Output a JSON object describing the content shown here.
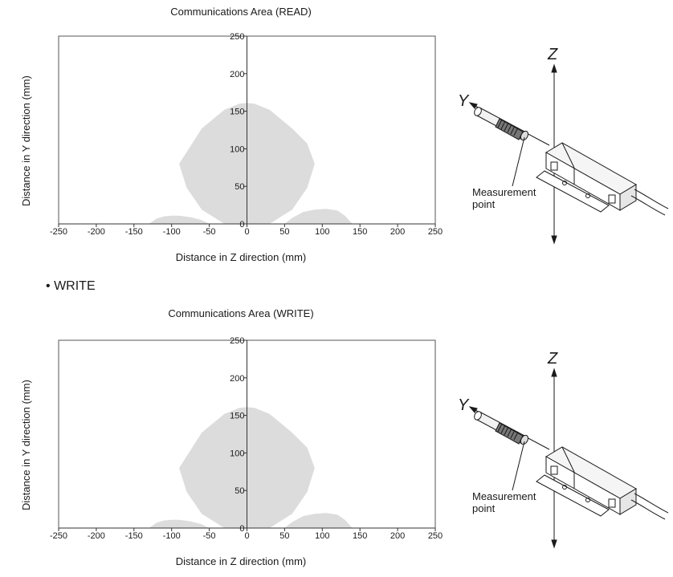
{
  "section_header": {
    "bullet": "•",
    "text": "WRITE"
  },
  "charts": [
    {
      "title": "Communications Area (READ)",
      "xlabel": "Distance in Z direction (mm)",
      "ylabel": "Distance in Y direction (mm)"
    },
    {
      "title": "Communications Area (WRITE)",
      "xlabel": "Distance in Z direction (mm)",
      "ylabel": "Distance in Y direction (mm)"
    }
  ],
  "diagram": {
    "axis_y": "Y",
    "axis_z": "Z",
    "measurement_label_1": "Measurement",
    "measurement_label_2": "point"
  },
  "chart_data": [
    {
      "type": "area",
      "title": "Communications Area (READ)",
      "xlabel": "Distance in Z direction (mm)",
      "ylabel": "Distance in Y direction (mm)",
      "xlim": [
        -250,
        250
      ],
      "ylim": [
        0,
        250
      ],
      "xticks": [
        -250,
        -200,
        -150,
        -100,
        -50,
        0,
        50,
        100,
        150,
        200,
        250
      ],
      "yticks": [
        0,
        50,
        100,
        150,
        200,
        250
      ],
      "fill_color": "#dcdcdc",
      "regions": [
        {
          "x": [
            -90,
            -60,
            -30,
            -10,
            0,
            10,
            30,
            60,
            80,
            90,
            80,
            60,
            30,
            10,
            0,
            -10,
            -30,
            -60,
            -80,
            -90
          ],
          "y": [
            80,
            127,
            152,
            160,
            161,
            160,
            152,
            127,
            107,
            80,
            48,
            19,
            0,
            0,
            0,
            0,
            0,
            19,
            48,
            80
          ]
        },
        {
          "x": [
            -130,
            -120,
            -110,
            -100,
            -90,
            -75,
            -60,
            -50
          ],
          "y": [
            0,
            7,
            10,
            11,
            11,
            9,
            5,
            0
          ]
        },
        {
          "x": [
            50,
            60,
            75,
            90,
            105,
            120,
            130,
            140
          ],
          "y": [
            0,
            8,
            16,
            19,
            20,
            18,
            11,
            0
          ]
        }
      ]
    },
    {
      "type": "area",
      "title": "Communications Area (WRITE)",
      "xlabel": "Distance in Z direction (mm)",
      "ylabel": "Distance in Y direction (mm)",
      "xlim": [
        -250,
        250
      ],
      "ylim": [
        0,
        250
      ],
      "xticks": [
        -250,
        -200,
        -150,
        -100,
        -50,
        0,
        50,
        100,
        150,
        200,
        250
      ],
      "yticks": [
        0,
        50,
        100,
        150,
        200,
        250
      ],
      "fill_color": "#dcdcdc",
      "regions": [
        {
          "x": [
            -90,
            -60,
            -30,
            -10,
            0,
            10,
            30,
            60,
            80,
            90,
            80,
            60,
            30,
            10,
            0,
            -10,
            -30,
            -60,
            -80,
            -90
          ],
          "y": [
            80,
            127,
            152,
            160,
            161,
            160,
            152,
            127,
            107,
            80,
            48,
            19,
            0,
            0,
            0,
            0,
            0,
            19,
            48,
            80
          ]
        },
        {
          "x": [
            -130,
            -120,
            -110,
            -100,
            -90,
            -75,
            -60,
            -50
          ],
          "y": [
            0,
            7,
            10,
            11,
            11,
            9,
            5,
            0
          ]
        },
        {
          "x": [
            50,
            60,
            75,
            90,
            105,
            120,
            130,
            140
          ],
          "y": [
            0,
            8,
            16,
            19,
            20,
            18,
            11,
            0
          ]
        }
      ]
    }
  ]
}
